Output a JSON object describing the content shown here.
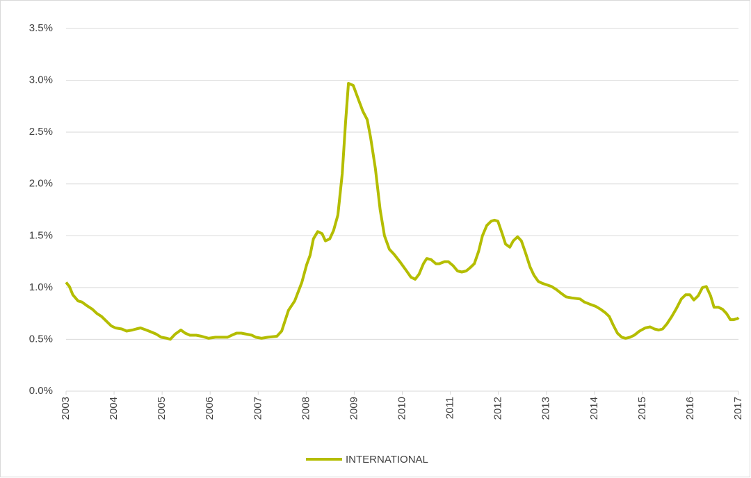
{
  "chart_data": {
    "type": "line",
    "x": [
      2003,
      2003.07,
      2003.14,
      2003.25,
      2003.33,
      2003.45,
      2003.55,
      2003.64,
      2003.74,
      2003.83,
      2003.94,
      2004.03,
      2004.16,
      2004.26,
      2004.38,
      2004.46,
      2004.55,
      2004.67,
      2004.78,
      2004.88,
      2004.98,
      2005.1,
      2005.17,
      2005.27,
      2005.39,
      2005.48,
      2005.58,
      2005.71,
      2005.82,
      2005.97,
      2006.11,
      2006.26,
      2006.36,
      2006.45,
      2006.55,
      2006.65,
      2006.76,
      2006.87,
      2006.95,
      2007.07,
      2007.2,
      2007.39,
      2007.49,
      2007.63,
      2007.76,
      2007.91,
      2008.01,
      2008.08,
      2008.15,
      2008.24,
      2008.33,
      2008.4,
      2008.49,
      2008.57,
      2008.66,
      2008.75,
      2008.82,
      2008.88,
      2008.98,
      2009.1,
      2009.18,
      2009.27,
      2009.34,
      2009.44,
      2009.54,
      2009.63,
      2009.73,
      2009.83,
      2009.95,
      2010.09,
      2010.18,
      2010.27,
      2010.35,
      2010.44,
      2010.51,
      2010.6,
      2010.7,
      2010.77,
      2010.88,
      2010.96,
      2011.06,
      2011.15,
      2011.24,
      2011.33,
      2011.41,
      2011.5,
      2011.59,
      2011.67,
      2011.76,
      2011.85,
      2011.92,
      2011.99,
      2012.08,
      2012.15,
      2012.24,
      2012.31,
      2012.4,
      2012.48,
      2012.57,
      2012.66,
      2012.74,
      2012.83,
      2012.92,
      2013.11,
      2013.21,
      2013.32,
      2013.41,
      2013.53,
      2013.7,
      2013.79,
      2013.9,
      2014.02,
      2014.13,
      2014.22,
      2014.31,
      2014.39,
      2014.48,
      2014.57,
      2014.65,
      2014.74,
      2014.83,
      2014.94,
      2015.06,
      2015.16,
      2015.25,
      2015.34,
      2015.42,
      2015.51,
      2015.61,
      2015.71,
      2015.81,
      2015.9,
      2015.99,
      2016.07,
      2016.16,
      2016.25,
      2016.33,
      2016.42,
      2016.49,
      2016.58,
      2016.67,
      2016.75,
      2016.83,
      2016.9,
      2016.98,
      2017
    ],
    "series": [
      {
        "name": "INTERNATIONAL",
        "color": "#b4bd00",
        "values": [
          1.05,
          1.01,
          0.93,
          0.87,
          0.86,
          0.82,
          0.79,
          0.75,
          0.72,
          0.68,
          0.63,
          0.61,
          0.6,
          0.58,
          0.59,
          0.6,
          0.61,
          0.59,
          0.57,
          0.55,
          0.52,
          0.51,
          0.5,
          0.55,
          0.59,
          0.56,
          0.54,
          0.54,
          0.53,
          0.51,
          0.52,
          0.52,
          0.52,
          0.54,
          0.56,
          0.56,
          0.55,
          0.54,
          0.52,
          0.51,
          0.52,
          0.53,
          0.58,
          0.78,
          0.87,
          1.05,
          1.22,
          1.31,
          1.47,
          1.54,
          1.52,
          1.45,
          1.47,
          1.55,
          1.7,
          2.1,
          2.6,
          2.97,
          2.95,
          2.8,
          2.7,
          2.62,
          2.45,
          2.15,
          1.75,
          1.5,
          1.37,
          1.32,
          1.25,
          1.16,
          1.1,
          1.08,
          1.13,
          1.23,
          1.28,
          1.27,
          1.23,
          1.23,
          1.25,
          1.25,
          1.21,
          1.16,
          1.15,
          1.16,
          1.19,
          1.23,
          1.35,
          1.5,
          1.6,
          1.64,
          1.65,
          1.64,
          1.52,
          1.42,
          1.39,
          1.45,
          1.49,
          1.45,
          1.33,
          1.2,
          1.12,
          1.06,
          1.04,
          1.01,
          0.98,
          0.94,
          0.91,
          0.9,
          0.89,
          0.86,
          0.84,
          0.82,
          0.79,
          0.76,
          0.72,
          0.64,
          0.56,
          0.52,
          0.51,
          0.52,
          0.54,
          0.58,
          0.61,
          0.62,
          0.6,
          0.59,
          0.6,
          0.65,
          0.72,
          0.8,
          0.89,
          0.93,
          0.93,
          0.88,
          0.92,
          1.0,
          1.01,
          0.92,
          0.81,
          0.81,
          0.79,
          0.75,
          0.69,
          0.69,
          0.7,
          0.71
        ]
      }
    ],
    "xlim": [
      2003,
      2017
    ],
    "xticks": [
      2003,
      2004,
      2005,
      2006,
      2007,
      2008,
      2009,
      2010,
      2011,
      2012,
      2013,
      2014,
      2015,
      2016,
      2017
    ],
    "ylim": [
      0,
      3.5
    ],
    "yticks": [
      {
        "value": 0,
        "label": "0.0%"
      },
      {
        "value": 0.5,
        "label": "0.5%"
      },
      {
        "value": 1,
        "label": "1.0%"
      },
      {
        "value": 1.5,
        "label": "1.5%"
      },
      {
        "value": 2,
        "label": "2.0%"
      },
      {
        "value": 2.5,
        "label": "2.5%"
      },
      {
        "value": 3,
        "label": "3.0%"
      },
      {
        "value": 3.5,
        "label": "3.5%"
      }
    ],
    "grid": true,
    "legend": "bottom"
  }
}
